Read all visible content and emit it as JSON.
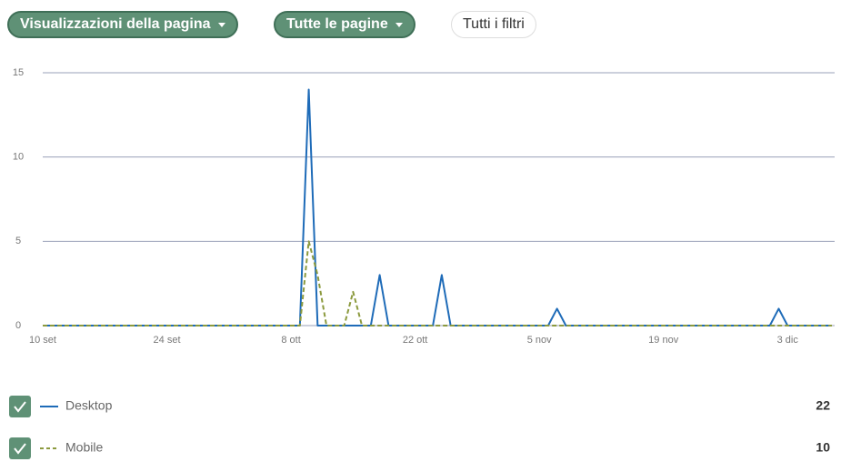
{
  "toolbar": {
    "buttons": [
      "Visualizzazioni della pagina",
      "Tutte le pagine",
      "Tutti i filtri"
    ]
  },
  "chart_data": {
    "type": "line",
    "categories": [
      "10 set",
      null,
      null,
      null,
      null,
      null,
      null,
      null,
      null,
      null,
      null,
      null,
      null,
      null,
      "24 set",
      null,
      null,
      null,
      null,
      null,
      null,
      null,
      null,
      null,
      null,
      null,
      null,
      null,
      "8 ott",
      null,
      null,
      null,
      null,
      null,
      null,
      null,
      null,
      null,
      null,
      null,
      null,
      null,
      "22 ott",
      null,
      null,
      null,
      null,
      null,
      null,
      null,
      null,
      null,
      null,
      null,
      null,
      null,
      "5 nov",
      null,
      null,
      null,
      null,
      null,
      null,
      null,
      null,
      null,
      null,
      null,
      null,
      null,
      "19 nov",
      null,
      null,
      null,
      null,
      null,
      null,
      null,
      null,
      null,
      null,
      null,
      null,
      null,
      "3 dic",
      null,
      null,
      null,
      null,
      null
    ],
    "series": [
      {
        "name": "Desktop",
        "color": "#1e6bb8",
        "dash": false,
        "total": 22,
        "values": [
          0,
          0,
          0,
          0,
          0,
          0,
          0,
          0,
          0,
          0,
          0,
          0,
          0,
          0,
          0,
          0,
          0,
          0,
          0,
          0,
          0,
          0,
          0,
          0,
          0,
          0,
          0,
          0,
          0,
          0,
          14,
          0,
          0,
          0,
          0,
          0,
          0,
          0,
          3,
          0,
          0,
          0,
          0,
          0,
          0,
          3,
          0,
          0,
          0,
          0,
          0,
          0,
          0,
          0,
          0,
          0,
          0,
          0,
          1,
          0,
          0,
          0,
          0,
          0,
          0,
          0,
          0,
          0,
          0,
          0,
          0,
          0,
          0,
          0,
          0,
          0,
          0,
          0,
          0,
          0,
          0,
          0,
          0,
          1,
          0,
          0,
          0,
          0,
          0,
          0
        ]
      },
      {
        "name": "Mobile",
        "color": "#8c9a3e",
        "dash": true,
        "total": 10,
        "values": [
          0,
          0,
          0,
          0,
          0,
          0,
          0,
          0,
          0,
          0,
          0,
          0,
          0,
          0,
          0,
          0,
          0,
          0,
          0,
          0,
          0,
          0,
          0,
          0,
          0,
          0,
          0,
          0,
          0,
          0,
          5,
          3,
          0,
          0,
          0,
          2,
          0,
          0,
          0,
          0,
          0,
          0,
          0,
          0,
          0,
          0,
          0,
          0,
          0,
          0,
          0,
          0,
          0,
          0,
          0,
          0,
          0,
          0,
          0,
          0,
          0,
          0,
          0,
          0,
          0,
          0,
          0,
          0,
          0,
          0,
          0,
          0,
          0,
          0,
          0,
          0,
          0,
          0,
          0,
          0,
          0,
          0,
          0,
          0,
          0,
          0,
          0,
          0,
          0,
          0
        ]
      }
    ],
    "ylim": [
      0,
      15
    ],
    "yticks": [
      0,
      5,
      10,
      15
    ],
    "grid": true
  }
}
